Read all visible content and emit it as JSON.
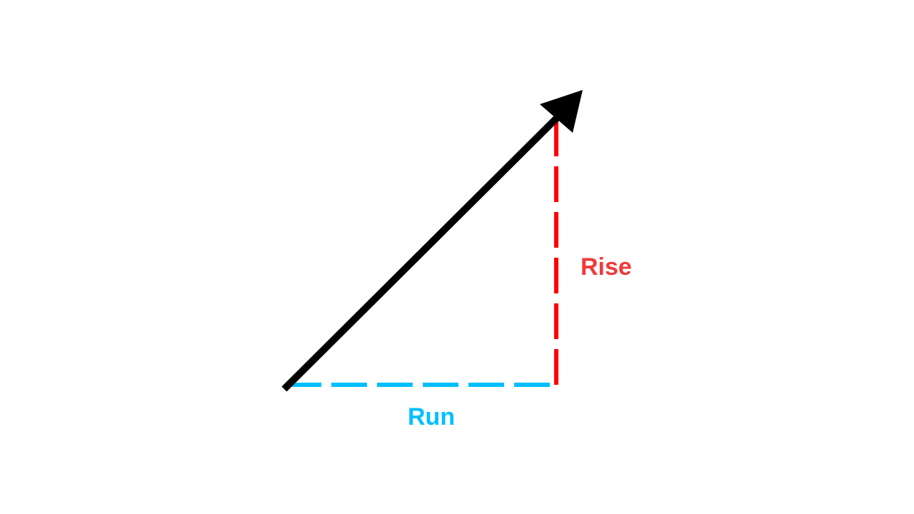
{
  "labels": {
    "rise": "Rise",
    "run": "Run"
  },
  "colors": {
    "background": "#ffffff",
    "arrow": "#000000",
    "rise": "#ff0000",
    "rise_label": "#f03a3a",
    "run": "#00bfff"
  },
  "icons": {
    "arrowhead": "triangle-arrowhead-icon"
  }
}
